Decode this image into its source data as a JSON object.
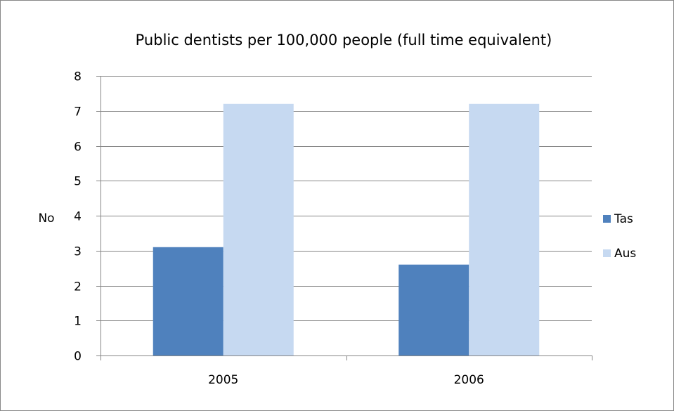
{
  "chart_data": {
    "type": "bar",
    "title": "Public dentists per 100,000 people (full time equivalent)",
    "xlabel": "",
    "ylabel": "No",
    "categories": [
      "2005",
      "2006"
    ],
    "series": [
      {
        "name": "Tas",
        "values": [
          3.1,
          2.6
        ],
        "color": "#4f81bd"
      },
      {
        "name": "Aus",
        "values": [
          7.2,
          7.2
        ],
        "color": "#c6d9f1"
      }
    ],
    "ylim": [
      0,
      8
    ],
    "yticks": [
      "0",
      "1",
      "2",
      "3",
      "4",
      "5",
      "6",
      "7",
      "8"
    ],
    "grid": true,
    "legend_position": "right",
    "gridline_color": "#868686"
  }
}
